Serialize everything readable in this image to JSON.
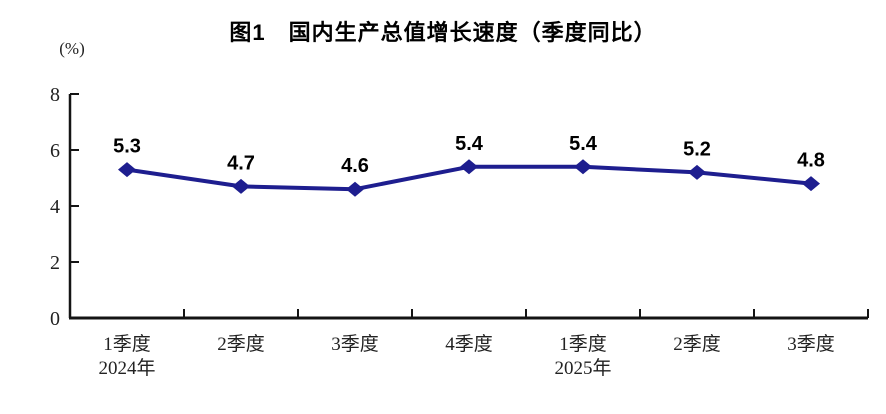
{
  "chart_data": {
    "type": "line",
    "title": "图1　国内生产总值增长速度（季度同比）",
    "ylabel": "(%)",
    "xlabel": "",
    "categories": [
      "1季度",
      "2季度",
      "3季度",
      "4季度",
      "1季度",
      "2季度",
      "3季度"
    ],
    "year_labels": [
      {
        "index": 0,
        "text": "2024年"
      },
      {
        "index": 4,
        "text": "2025年"
      }
    ],
    "values": [
      5.3,
      4.7,
      4.6,
      5.4,
      5.4,
      5.2,
      4.8
    ],
    "value_labels": [
      "5.3",
      "4.7",
      "4.6",
      "5.4",
      "5.4",
      "5.2",
      "4.8"
    ],
    "ylim": [
      0,
      8
    ],
    "yticks": [
      0,
      2,
      4,
      6,
      8
    ],
    "grid": false,
    "legend": false,
    "marker": "diamond",
    "line_color": "#1e1e8f",
    "marker_color": "#1e1e8f",
    "axis_color": "#141414",
    "label_color": "#000000"
  }
}
